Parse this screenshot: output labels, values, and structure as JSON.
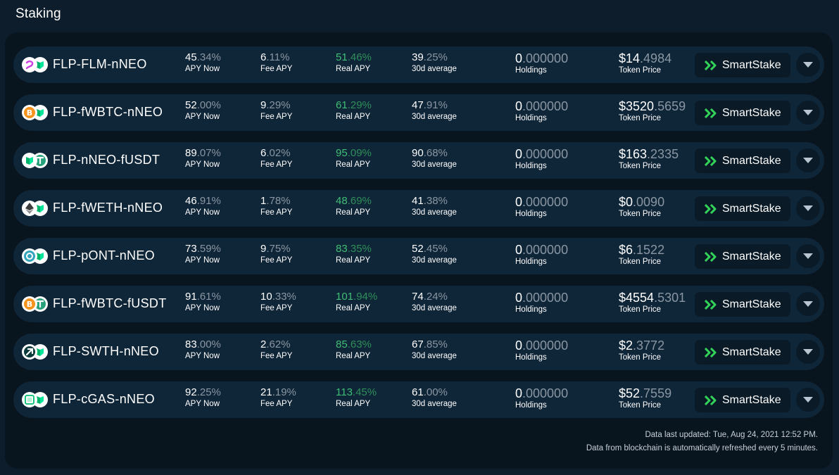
{
  "page_title": "Staking",
  "labels": {
    "apy_now": "APY Now",
    "fee_apy": "Fee APY",
    "real_apy": "Real APY",
    "avg30d": "30d average",
    "holdings": "Holdings",
    "token_price": "Token Price",
    "smartstake": "SmartStake"
  },
  "colors": {
    "background": "#0e1d2b",
    "panel": "#08141e",
    "row": "#0f2538",
    "real_apy_green": "#3fbf75",
    "smartstake_chevron": "#33d35a"
  },
  "pools": [
    {
      "pair": "FLP-FLM-nNEO",
      "icon_a": "flamingo-icon",
      "icon_b": "neo-icon",
      "apy_int": "45",
      "apy_dec": ".34%",
      "fee_int": "6",
      "fee_dec": ".11%",
      "real_int": "51",
      "real_dec": ".46%",
      "avg_int": "39",
      "avg_dec": ".25%",
      "hold_int": "0",
      "hold_dec": ".000000",
      "price_int": "$14",
      "price_dec": ".4984"
    },
    {
      "pair": "FLP-fWBTC-nNEO",
      "icon_a": "bitcoin-icon",
      "icon_b": "neo-icon",
      "apy_int": "52",
      "apy_dec": ".00%",
      "fee_int": "9",
      "fee_dec": ".29%",
      "real_int": "61",
      "real_dec": ".29%",
      "avg_int": "47",
      "avg_dec": ".91%",
      "hold_int": "0",
      "hold_dec": ".000000",
      "price_int": "$3520",
      "price_dec": ".5659"
    },
    {
      "pair": "FLP-nNEO-fUSDT",
      "icon_a": "neo-icon",
      "icon_b": "tether-icon",
      "apy_int": "89",
      "apy_dec": ".07%",
      "fee_int": "6",
      "fee_dec": ".02%",
      "real_int": "95",
      "real_dec": ".09%",
      "avg_int": "90",
      "avg_dec": ".68%",
      "hold_int": "0",
      "hold_dec": ".000000",
      "price_int": "$163",
      "price_dec": ".2335"
    },
    {
      "pair": "FLP-fWETH-nNEO",
      "icon_a": "ethereum-icon",
      "icon_b": "neo-icon",
      "apy_int": "46",
      "apy_dec": ".91%",
      "fee_int": "1",
      "fee_dec": ".78%",
      "real_int": "48",
      "real_dec": ".69%",
      "avg_int": "41",
      "avg_dec": ".38%",
      "hold_int": "0",
      "hold_dec": ".000000",
      "price_int": "$0",
      "price_dec": ".0090"
    },
    {
      "pair": "FLP-pONT-nNEO",
      "icon_a": "ontology-icon",
      "icon_b": "neo-icon",
      "apy_int": "73",
      "apy_dec": ".59%",
      "fee_int": "9",
      "fee_dec": ".75%",
      "real_int": "83",
      "real_dec": ".35%",
      "avg_int": "52",
      "avg_dec": ".45%",
      "hold_int": "0",
      "hold_dec": ".000000",
      "price_int": "$6",
      "price_dec": ".1522"
    },
    {
      "pair": "FLP-fWBTC-fUSDT",
      "icon_a": "bitcoin-icon",
      "icon_b": "tether-icon",
      "apy_int": "91",
      "apy_dec": ".61%",
      "fee_int": "10",
      "fee_dec": ".33%",
      "real_int": "101",
      "real_dec": ".94%",
      "avg_int": "74",
      "avg_dec": ".24%",
      "hold_int": "0",
      "hold_dec": ".000000",
      "price_int": "$4554",
      "price_dec": ".5301"
    },
    {
      "pair": "FLP-SWTH-nNEO",
      "icon_a": "switcheo-icon",
      "icon_b": "neo-icon",
      "apy_int": "83",
      "apy_dec": ".00%",
      "fee_int": "2",
      "fee_dec": ".62%",
      "real_int": "85",
      "real_dec": ".63%",
      "avg_int": "67",
      "avg_dec": ".85%",
      "hold_int": "0",
      "hold_dec": ".000000",
      "price_int": "$2",
      "price_dec": ".3772"
    },
    {
      "pair": "FLP-cGAS-nNEO",
      "icon_a": "gas-icon",
      "icon_b": "neo-icon",
      "apy_int": "92",
      "apy_dec": ".25%",
      "fee_int": "21",
      "fee_dec": ".19%",
      "real_int": "113",
      "real_dec": ".45%",
      "avg_int": "61",
      "avg_dec": ".00%",
      "hold_int": "0",
      "hold_dec": ".000000",
      "price_int": "$52",
      "price_dec": ".7559"
    }
  ],
  "footer": {
    "updated": "Data last updated: Tue, Aug 24, 2021 12:52 PM.",
    "refresh": "Data from blockchain is automatically refreshed every 5 minutes."
  }
}
